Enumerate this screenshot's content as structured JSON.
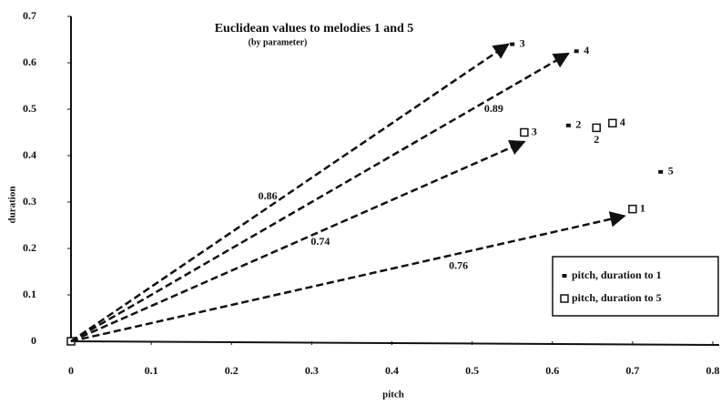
{
  "chart_data": {
    "type": "scatter",
    "title": "Euclidean values to melodies 1 and 5",
    "subtitle": "(by parameter)",
    "x_label": "pitch",
    "y_label": "duration",
    "xlim": [
      0,
      0.8
    ],
    "ylim": [
      0,
      0.7
    ],
    "xticks": [
      0,
      0.1,
      0.2,
      0.3,
      0.4,
      0.5,
      0.6,
      0.7,
      0.8
    ],
    "yticks": [
      0,
      0.1,
      0.2,
      0.3,
      0.4,
      0.5,
      0.6,
      0.7
    ],
    "legend": "lower right",
    "series": [
      {
        "name": "pitch, duration to 1",
        "marker": "filled",
        "color": "#111111",
        "x": [
          0.55,
          0.63,
          0.62,
          0.735
        ],
        "y": [
          0.64,
          0.625,
          0.465,
          0.365
        ],
        "point_labels": [
          "3",
          "4",
          "2",
          "5"
        ]
      },
      {
        "name": "pitch, duration to 5",
        "marker": "open",
        "color": "#111111",
        "x": [
          0.565,
          0.675,
          0.655,
          0.7
        ],
        "y": [
          0.45,
          0.47,
          0.46,
          0.285
        ],
        "point_labels": [
          "3",
          "4",
          "2",
          "1"
        ]
      }
    ],
    "arrows": [
      {
        "text": "0.86",
        "x_end": 0.545,
        "y_end": 0.64
      },
      {
        "text": "0.89",
        "x_end": 0.62,
        "y_end": 0.62
      },
      {
        "text": "0.74",
        "x_end": 0.565,
        "y_end": 0.43
      },
      {
        "text": "0.76",
        "x_end": 0.69,
        "y_end": 0.27
      }
    ]
  }
}
